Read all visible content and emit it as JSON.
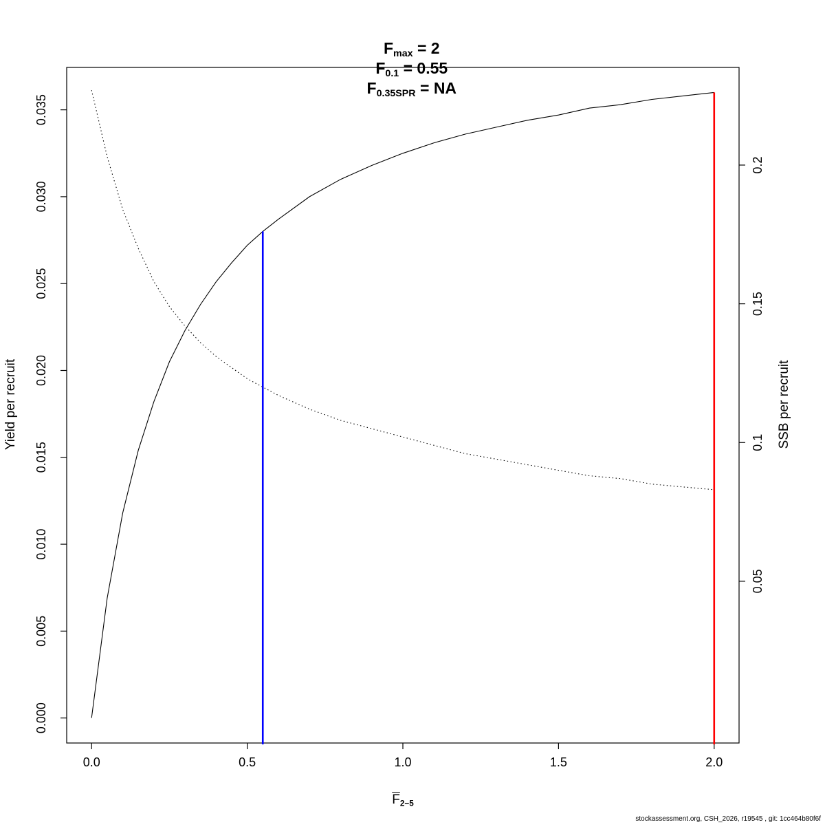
{
  "title": {
    "items": [
      {
        "base": "F",
        "sub": "max",
        "value": " = 2"
      },
      {
        "base": "F",
        "sub": "0.1",
        "value": " = 0.55"
      },
      {
        "base": "F",
        "sub": "0.35SPR",
        "value": " = NA"
      }
    ]
  },
  "footer": "stockassessment.org, CSH_2026, r19545 , git: 1cc464b80f6f",
  "chart_data": {
    "type": "line",
    "title": "Fmax = 2   F0.1 = 0.55   F0.35SPR = NA",
    "x_axis": {
      "label_base": "F",
      "label_sub": "2−5",
      "ticks": [
        0,
        0.5,
        1,
        1.5,
        2
      ],
      "tick_labels": [
        "0.0",
        "0.5",
        "1.0",
        "1.5",
        "2.0"
      ],
      "range": [
        -0.08,
        2.08
      ]
    },
    "y_axis_left": {
      "label": "Yield per recruit",
      "ticks": [
        0,
        0.005,
        0.01,
        0.015,
        0.02,
        0.025,
        0.03,
        0.035
      ],
      "tick_labels": [
        "0.000",
        "0.005",
        "0.010",
        "0.015",
        "0.020",
        "0.025",
        "0.030",
        "0.035"
      ],
      "range": [
        -0.00144,
        0.03744
      ]
    },
    "y_axis_right": {
      "label": "SSB per recruit",
      "ticks": [
        0.05,
        0.1,
        0.15,
        0.2
      ],
      "tick_labels": [
        "0.05",
        "0.1",
        "0.15",
        "0.2"
      ],
      "range": [
        -0.0083,
        0.2352
      ]
    },
    "x": [
      0,
      0.05,
      0.1,
      0.15,
      0.2,
      0.25,
      0.3,
      0.35,
      0.4,
      0.45,
      0.5,
      0.55,
      0.6,
      0.7,
      0.8,
      0.9,
      1,
      1.1,
      1.2,
      1.3,
      1.4,
      1.5,
      1.6,
      1.7,
      1.8,
      1.9,
      2
    ],
    "series": [
      {
        "name": "yield_per_recruit",
        "axis": "left",
        "style": "solid",
        "color": "#000000",
        "values": [
          0,
          0.0069,
          0.0118,
          0.0154,
          0.0182,
          0.0205,
          0.0223,
          0.0238,
          0.0251,
          0.0262,
          0.0272,
          0.028,
          0.0287,
          0.03,
          0.031,
          0.0318,
          0.0325,
          0.0331,
          0.0336,
          0.034,
          0.0344,
          0.0347,
          0.0351,
          0.0353,
          0.0356,
          0.0358,
          0.036
        ]
      },
      {
        "name": "ssb_per_recruit",
        "axis": "right",
        "style": "dotted",
        "color": "#000000",
        "values": [
          0.227,
          0.203,
          0.184,
          0.17,
          0.158,
          0.149,
          0.142,
          0.136,
          0.131,
          0.127,
          0.123,
          0.12,
          0.117,
          0.112,
          0.108,
          0.105,
          0.102,
          0.099,
          0.096,
          0.094,
          0.092,
          0.09,
          0.088,
          0.087,
          0.085,
          0.084,
          0.083
        ]
      }
    ],
    "ref_lines": [
      {
        "name": "F0.1-line",
        "x": 0.55,
        "y_top": 0.028,
        "axis": "left",
        "color": "#0000ff"
      },
      {
        "name": "Fmax-line",
        "x": 2.0,
        "y_top": 0.036,
        "axis": "left",
        "color": "#ff0000"
      }
    ]
  }
}
